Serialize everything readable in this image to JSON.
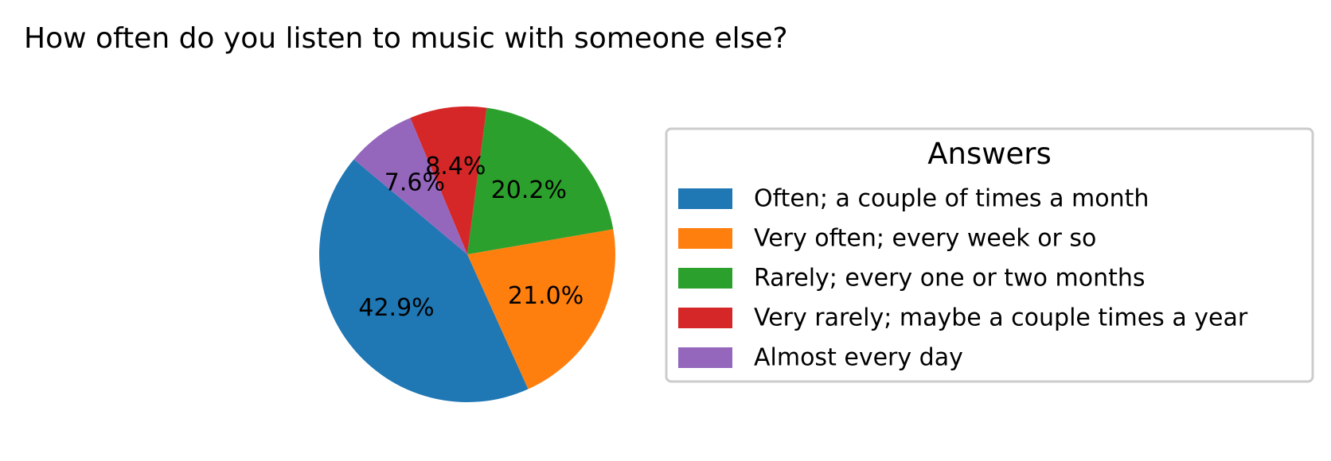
{
  "chart_data": {
    "type": "pie",
    "title": "How often do you listen to music with someone else?",
    "legend": {
      "title": "Answers",
      "placement": "right"
    },
    "slices": [
      {
        "label": "Often; a couple of times a month",
        "value": 42.9,
        "pct_label": "42.9%",
        "color": "#1f77b4"
      },
      {
        "label": "Very often; every week or so",
        "value": 21.0,
        "pct_label": "21.0%",
        "color": "#ff7f0e"
      },
      {
        "label": "Rarely; every one or two months",
        "value": 20.2,
        "pct_label": "20.2%",
        "color": "#2ca02c"
      },
      {
        "label": "Very rarely; maybe a couple times a year",
        "value": 8.4,
        "pct_label": "8.4%",
        "color": "#d62728"
      },
      {
        "label": "Almost every day",
        "value": 7.6,
        "pct_label": "7.6%",
        "color": "#9467bd"
      }
    ],
    "start_angle_deg": 140,
    "direction": "counterclockwise"
  }
}
